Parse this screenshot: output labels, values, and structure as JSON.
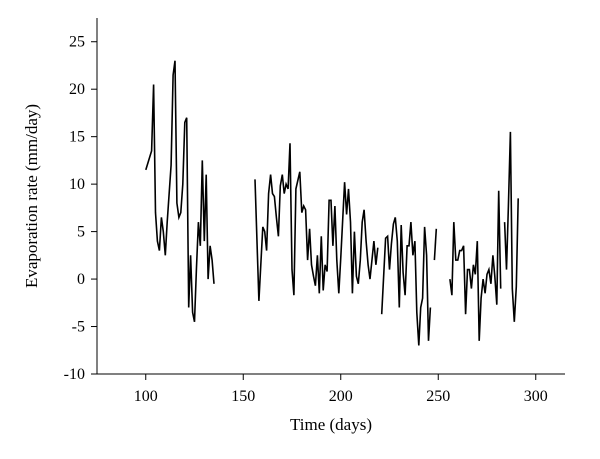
{
  "chart_data": {
    "type": "line",
    "xlabel": "Time (days)",
    "ylabel": "Evaporation rate (mm/day)",
    "xlim": [
      75,
      315
    ],
    "ylim": [
      -10,
      27.5
    ],
    "xticks": [
      100,
      150,
      200,
      250,
      300
    ],
    "yticks": [
      -10,
      -5,
      0,
      5,
      10,
      15,
      20,
      25
    ],
    "grid": false,
    "series": [
      {
        "color": "#000000",
        "segments": [
          [
            [
              100,
              11.5
            ],
            [
              103,
              13.5
            ],
            [
              104,
              20.5
            ],
            [
              105,
              7
            ],
            [
              106,
              4
            ],
            [
              107,
              3
            ],
            [
              108,
              6.5
            ],
            [
              109,
              5
            ],
            [
              110,
              2.5
            ],
            [
              111,
              6
            ],
            [
              113,
              12
            ],
            [
              114,
              21.5
            ],
            [
              115,
              23
            ],
            [
              116,
              8
            ],
            [
              117,
              6.5
            ],
            [
              118,
              7
            ],
            [
              119,
              10
            ],
            [
              120,
              16.5
            ],
            [
              121,
              17
            ],
            [
              122,
              -3
            ],
            [
              123,
              2.5
            ],
            [
              124,
              -3.5
            ],
            [
              125,
              -4.5
            ],
            [
              126,
              1
            ],
            [
              127,
              6
            ],
            [
              128,
              3.5
            ],
            [
              129,
              12.5
            ],
            [
              130,
              4
            ],
            [
              131,
              11
            ],
            [
              132,
              0
            ],
            [
              133,
              3.5
            ],
            [
              134,
              2
            ],
            [
              135,
              -0.5
            ]
          ],
          [
            [
              156,
              10.5
            ],
            [
              158,
              -2.3
            ],
            [
              160,
              5.5
            ],
            [
              161,
              5
            ],
            [
              162,
              3
            ],
            [
              163,
              9
            ],
            [
              164,
              11
            ],
            [
              165,
              9
            ],
            [
              166,
              8.7
            ],
            [
              167,
              6.5
            ],
            [
              168,
              4.5
            ],
            [
              169,
              9.8
            ],
            [
              170,
              11
            ],
            [
              171,
              9
            ],
            [
              172,
              10
            ],
            [
              173,
              9.5
            ],
            [
              174,
              14.3
            ],
            [
              175,
              1
            ],
            [
              176,
              -1.7
            ],
            [
              177,
              9.5
            ],
            [
              179,
              11.3
            ],
            [
              180,
              7
            ],
            [
              181,
              7.7
            ],
            [
              182,
              7.3
            ],
            [
              183,
              2
            ],
            [
              184,
              5.3
            ],
            [
              185,
              1.5
            ],
            [
              186,
              0.3
            ],
            [
              187,
              -0.7
            ],
            [
              188,
              2.5
            ],
            [
              189,
              -1.5
            ],
            [
              190,
              4.5
            ],
            [
              191,
              -1.2
            ],
            [
              192,
              1.5
            ],
            [
              193,
              0.8
            ],
            [
              194,
              8.3
            ],
            [
              195,
              8.3
            ],
            [
              196,
              3.5
            ],
            [
              197,
              7.7
            ],
            [
              198,
              2
            ],
            [
              199,
              -1.5
            ],
            [
              200,
              2.3
            ],
            [
              202,
              10.2
            ],
            [
              203,
              6.8
            ],
            [
              204,
              9.5
            ],
            [
              205,
              6
            ],
            [
              206,
              -1.5
            ],
            [
              207,
              5
            ],
            [
              208,
              0.3
            ],
            [
              209,
              -0.5
            ],
            [
              210,
              2
            ],
            [
              211,
              6
            ],
            [
              212,
              7.3
            ],
            [
              213,
              4
            ],
            [
              214,
              1.5
            ],
            [
              215,
              0
            ],
            [
              217,
              4
            ],
            [
              218,
              1.5
            ],
            [
              219,
              3.3
            ]
          ],
          [
            [
              221,
              -3.7
            ],
            [
              223,
              4.3
            ],
            [
              224,
              4.5
            ],
            [
              225,
              1
            ],
            [
              226,
              3.7
            ],
            [
              227,
              5.8
            ],
            [
              228,
              6.5
            ],
            [
              229,
              4
            ],
            [
              230,
              -3
            ],
            [
              231,
              5.7
            ],
            [
              232,
              0.7
            ],
            [
              233,
              -1.7
            ],
            [
              234,
              3.5
            ],
            [
              235,
              3.5
            ],
            [
              236,
              6
            ],
            [
              237,
              2.5
            ],
            [
              238,
              4
            ],
            [
              239,
              -3.5
            ],
            [
              240,
              -7
            ],
            [
              241,
              -3
            ],
            [
              242,
              -2
            ],
            [
              243,
              5.5
            ],
            [
              244,
              2.5
            ],
            [
              245,
              -6.5
            ],
            [
              246,
              -3
            ]
          ],
          [
            [
              248,
              2
            ],
            [
              249,
              5.3
            ]
          ],
          [
            [
              256,
              0
            ],
            [
              257,
              -1.7
            ],
            [
              258,
              6
            ],
            [
              259,
              2
            ],
            [
              260,
              2
            ],
            [
              261,
              3
            ],
            [
              262,
              3
            ],
            [
              263,
              3.5
            ],
            [
              264,
              -3.7
            ],
            [
              265,
              1
            ],
            [
              266,
              1
            ],
            [
              267,
              -1
            ],
            [
              268,
              1.5
            ],
            [
              269,
              0.5
            ],
            [
              270,
              4
            ],
            [
              271,
              -6.5
            ],
            [
              272,
              -2
            ],
            [
              273,
              0
            ],
            [
              274,
              -1.5
            ],
            [
              275,
              0.5
            ],
            [
              276,
              1
            ],
            [
              277,
              -0.5
            ],
            [
              278,
              2.5
            ],
            [
              279,
              0.3
            ],
            [
              280,
              -2.7
            ],
            [
              281,
              9.3
            ],
            [
              282,
              -1
            ]
          ],
          [
            [
              284,
              6
            ],
            [
              285,
              1
            ],
            [
              286,
              7.7
            ],
            [
              287,
              15.5
            ],
            [
              288,
              -1
            ],
            [
              289,
              -4.5
            ],
            [
              290,
              -0.8
            ],
            [
              291,
              8.5
            ]
          ]
        ]
      }
    ]
  }
}
